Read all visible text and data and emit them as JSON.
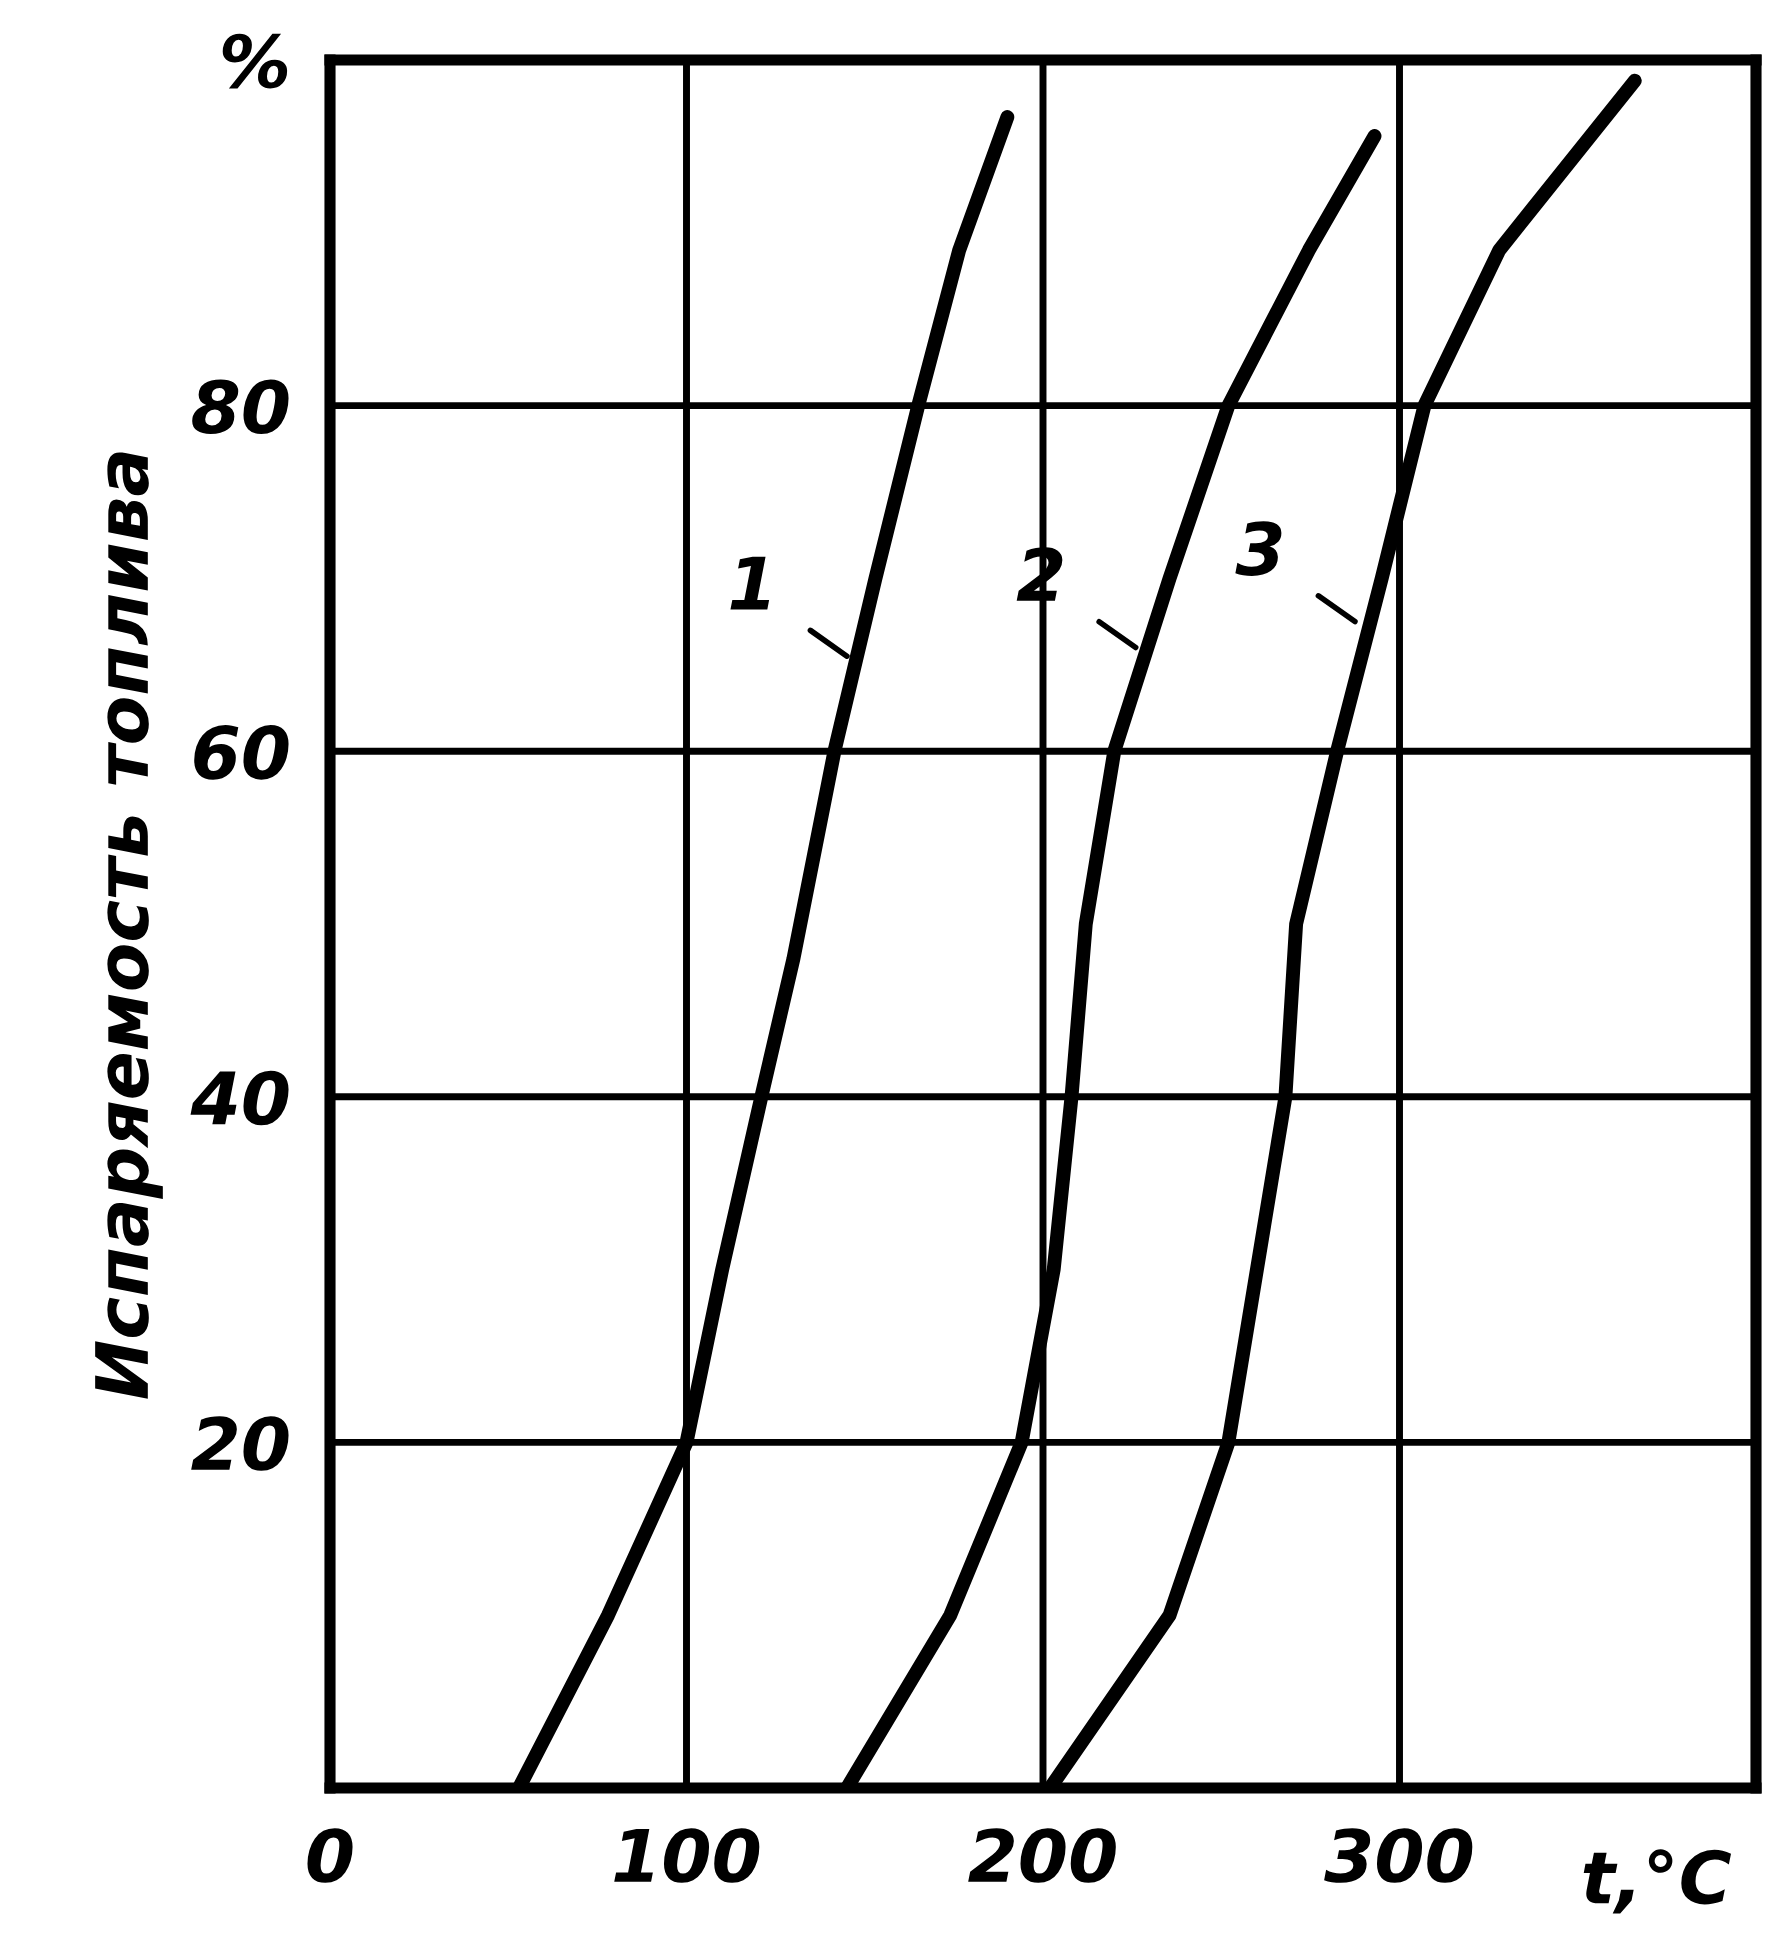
{
  "chart_data": {
    "type": "line",
    "xlabel": "t,°C",
    "ylabel": "Испаряемость топлива",
    "xlim": [
      0,
      400
    ],
    "ylim": [
      0,
      100
    ],
    "xticks": [
      0,
      100,
      200,
      300
    ],
    "yticks": [
      {
        "value": 0,
        "label": null
      },
      20,
      40,
      60,
      80,
      {
        "value": 100,
        "label": "%"
      }
    ],
    "grid": true,
    "marker": "none",
    "line_style": "solid",
    "series": [
      {
        "color": "#000000",
        "x": [
          53,
          78,
          100,
          110,
          121,
          130,
          141.5,
          153,
          165,
          176.5,
          190
        ],
        "values": [
          0,
          10,
          20,
          30,
          40,
          48,
          60,
          70,
          80,
          89,
          96.7
        ]
      },
      {
        "color": "#000000",
        "x": [
          145,
          174,
          194,
          203,
          208,
          212,
          220,
          235.5,
          252,
          274.6,
          293
        ],
        "values": [
          0,
          10,
          20,
          30,
          40,
          50,
          60,
          70,
          80,
          89,
          95.6
        ]
      },
      {
        "color": "#000000",
        "x": [
          202,
          235.5,
          252,
          260,
          268,
          271,
          282.5,
          295,
          307,
          328,
          366
        ],
        "values": [
          0,
          10,
          20,
          30,
          40,
          50,
          60,
          70,
          80,
          89,
          98.8
        ]
      }
    ],
    "annotations": [
      {
        "text": "1",
        "x": 145,
        "y": 65.5
      },
      {
        "text": "2",
        "x": 226,
        "y": 66
      },
      {
        "text": "3",
        "x": 287.5,
        "y": 67.5
      }
    ]
  }
}
